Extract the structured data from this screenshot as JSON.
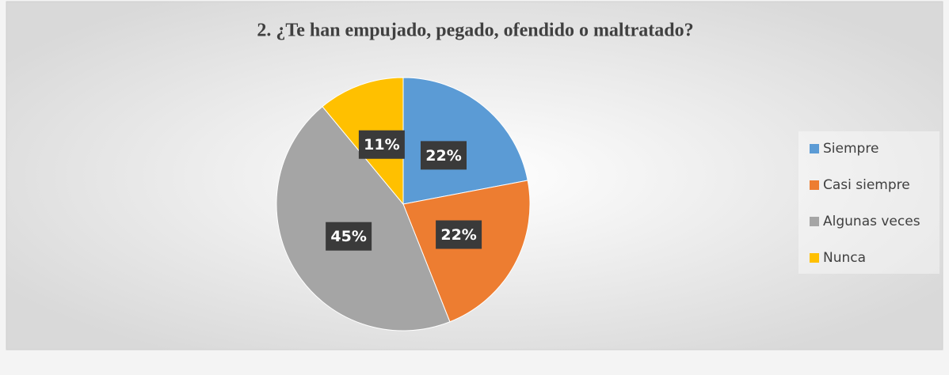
{
  "chart_data": {
    "type": "pie",
    "title": "2. ¿Te han empujado, pegado, ofendido o maltratado?",
    "categories": [
      "Siempre",
      "Casi siempre",
      "Algunas veces",
      "Nunca"
    ],
    "values": [
      22,
      22,
      45,
      11
    ],
    "value_labels": [
      "22%",
      "22%",
      "45%",
      "11%"
    ],
    "colors": [
      "#5b9bd5",
      "#ed7d31",
      "#a5a5a5",
      "#ffc000"
    ],
    "legend": "right"
  }
}
